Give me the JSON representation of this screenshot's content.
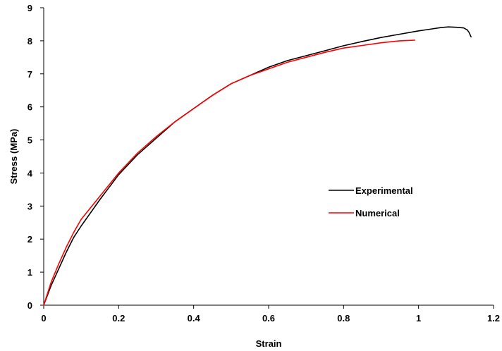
{
  "chart_data": {
    "type": "line",
    "title": "",
    "xlabel": "Strain",
    "ylabel": "Stress (MPa)",
    "xlim": [
      0,
      1.2
    ],
    "ylim": [
      0,
      9
    ],
    "xticks": [
      0,
      0.2,
      0.4,
      0.6,
      0.8,
      1,
      1.2
    ],
    "xtick_labels": [
      "0",
      "0.2",
      "0.4",
      "0.6",
      "0.8",
      "1",
      "1.2"
    ],
    "yticks": [
      0,
      1,
      2,
      3,
      4,
      5,
      6,
      7,
      8,
      9
    ],
    "ytick_labels": [
      "0",
      "1",
      "2",
      "3",
      "4",
      "5",
      "6",
      "7",
      "8",
      "9"
    ],
    "grid": false,
    "legend_position": "right-middle",
    "series": [
      {
        "name": "Experimental",
        "color": "#000000",
        "x": [
          0,
          0.02,
          0.04,
          0.06,
          0.08,
          0.1,
          0.15,
          0.2,
          0.25,
          0.3,
          0.35,
          0.4,
          0.45,
          0.5,
          0.55,
          0.6,
          0.65,
          0.7,
          0.75,
          0.8,
          0.85,
          0.9,
          0.95,
          1.0,
          1.03,
          1.06,
          1.08,
          1.1,
          1.12,
          1.13,
          1.135,
          1.14
        ],
        "y": [
          0,
          0.6,
          1.1,
          1.6,
          2.05,
          2.4,
          3.2,
          3.95,
          4.55,
          5.05,
          5.55,
          5.95,
          6.35,
          6.7,
          6.95,
          7.2,
          7.4,
          7.55,
          7.7,
          7.85,
          7.98,
          8.1,
          8.2,
          8.3,
          8.35,
          8.4,
          8.42,
          8.41,
          8.39,
          8.33,
          8.25,
          8.12
        ]
      },
      {
        "name": "Numerical",
        "color": "#ff0000",
        "x": [
          0,
          0.02,
          0.04,
          0.06,
          0.08,
          0.1,
          0.15,
          0.2,
          0.25,
          0.3,
          0.35,
          0.4,
          0.45,
          0.5,
          0.55,
          0.6,
          0.65,
          0.7,
          0.75,
          0.8,
          0.85,
          0.9,
          0.95,
          0.99
        ],
        "y": [
          0,
          0.7,
          1.25,
          1.75,
          2.2,
          2.6,
          3.3,
          4.0,
          4.6,
          5.1,
          5.55,
          5.95,
          6.35,
          6.7,
          6.95,
          7.15,
          7.35,
          7.5,
          7.65,
          7.78,
          7.86,
          7.94,
          8.0,
          8.02
        ]
      }
    ]
  }
}
